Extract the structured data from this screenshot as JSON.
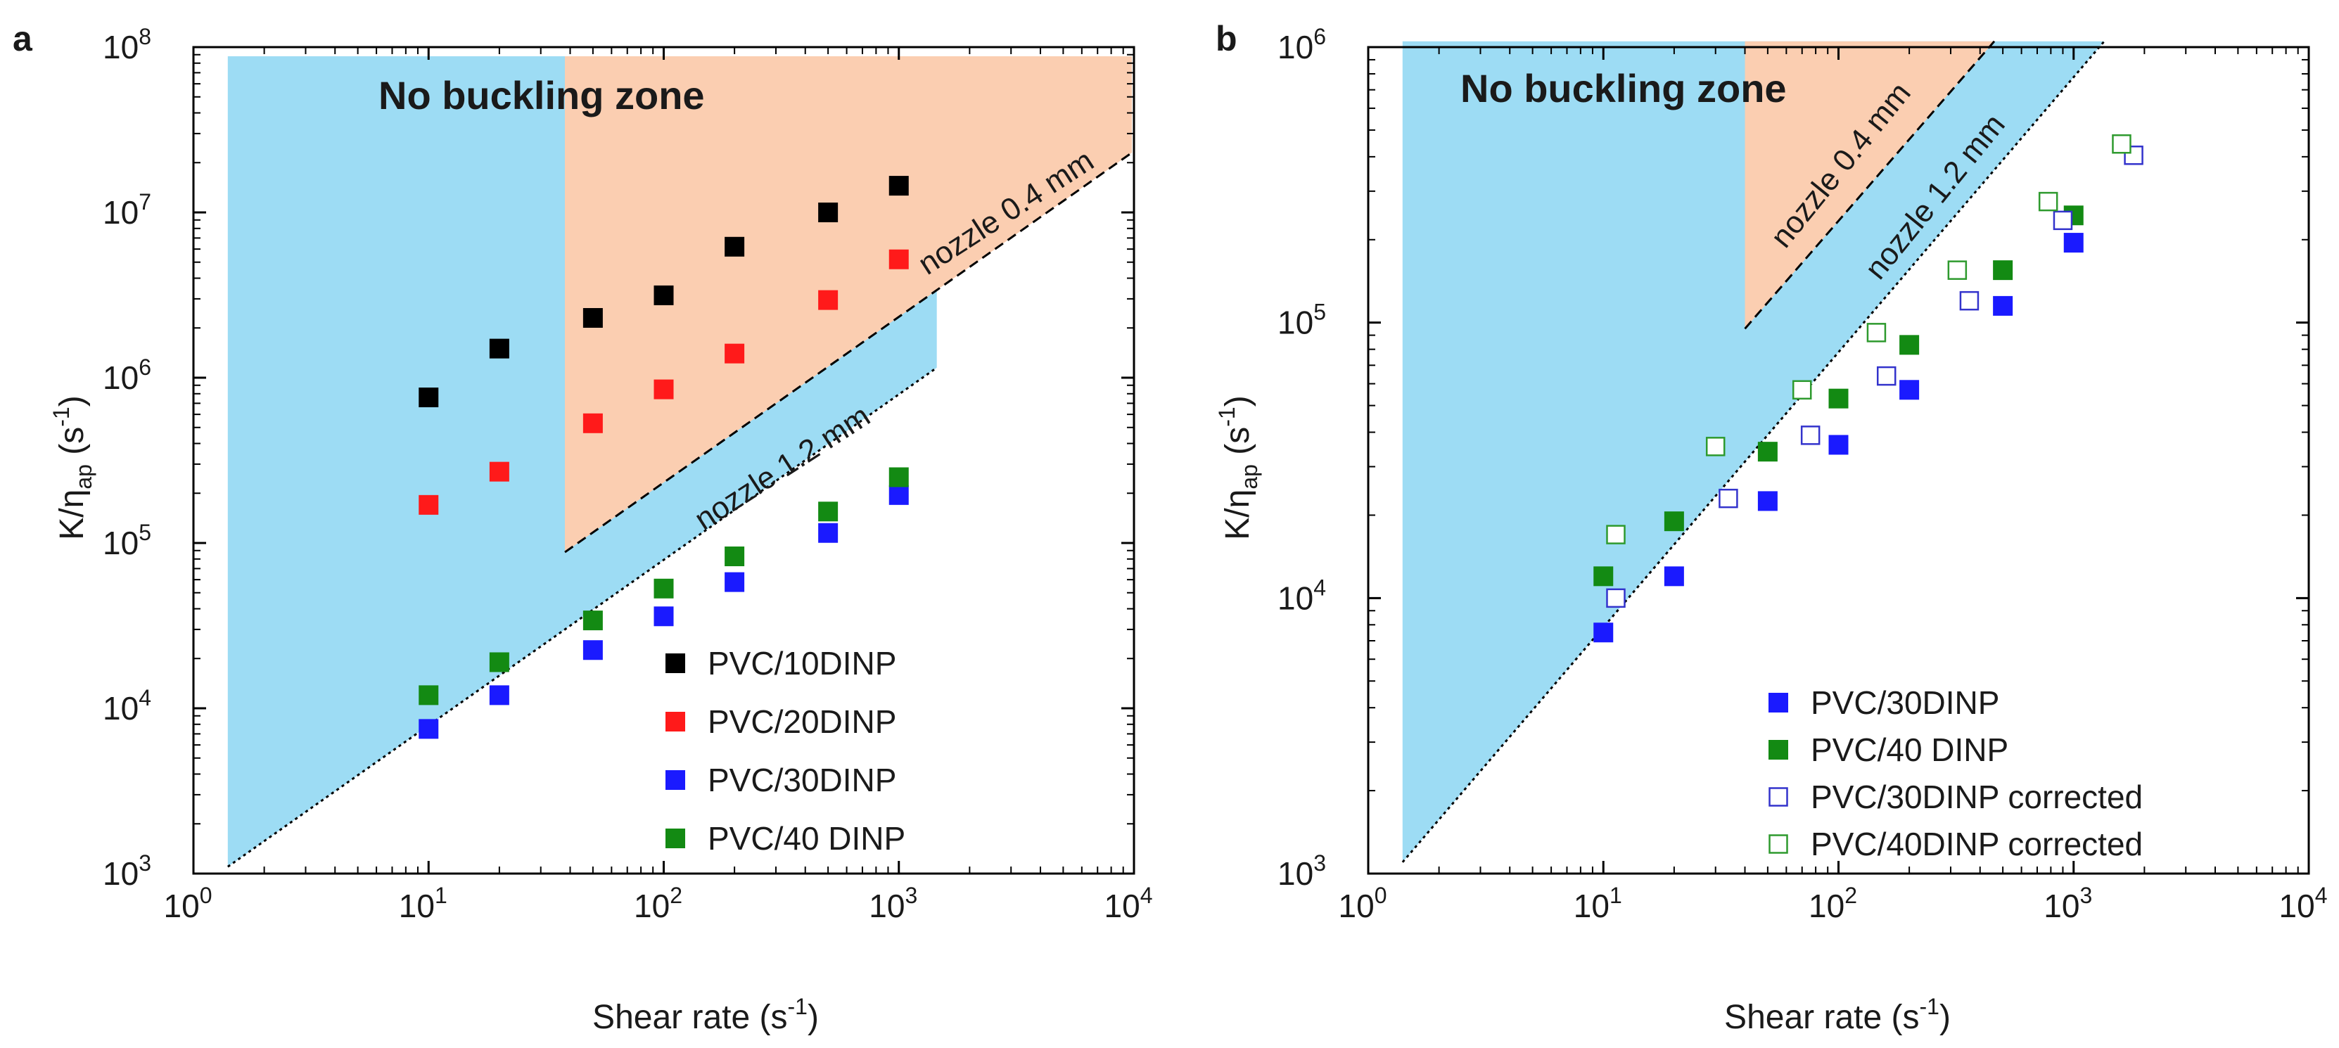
{
  "chart_data": [
    {
      "panel_label": "a",
      "type": "scatter",
      "xscale": "log",
      "yscale": "log",
      "xlim": [
        1,
        10000
      ],
      "ylim": [
        1000,
        100000000
      ],
      "xlabel": {
        "main": "Shear rate (s",
        "sup": "-1",
        "end": ")"
      },
      "ylabel": {
        "main": "K/η",
        "sub": "ap",
        "mid": " (s",
        "sup": "-1",
        "end": ")"
      },
      "x_ticks": [
        {
          "base": "10",
          "exp": "0",
          "value": 1
        },
        {
          "base": "10",
          "exp": "1",
          "value": 10
        },
        {
          "base": "10",
          "exp": "2",
          "value": 100
        },
        {
          "base": "10",
          "exp": "3",
          "value": 1000
        },
        {
          "base": "10",
          "exp": "4",
          "value": 10000
        }
      ],
      "y_ticks": [
        {
          "base": "10",
          "exp": "3",
          "value": 1000
        },
        {
          "base": "10",
          "exp": "4",
          "value": 10000
        },
        {
          "base": "10",
          "exp": "5",
          "value": 100000
        },
        {
          "base": "10",
          "exp": "6",
          "value": 1000000
        },
        {
          "base": "10",
          "exp": "7",
          "value": 10000000
        },
        {
          "base": "10",
          "exp": "8",
          "value": 100000000
        }
      ],
      "zone_title": "No buckling zone",
      "regions": [
        {
          "name": "blue",
          "color": "#9ddcf4",
          "points": [
            [
              1.4,
              1100
            ],
            [
              1.4,
              88000000
            ],
            [
              1450,
              88000000
            ],
            [
              1450,
              1150000
            ]
          ]
        },
        {
          "name": "orange",
          "color": "#fbceb1",
          "points": [
            [
              38,
              88000
            ],
            [
              38,
              88000000
            ],
            [
              9800,
              88000000
            ],
            [
              9800,
              23000000
            ]
          ]
        }
      ],
      "boundaries": [
        {
          "label": "nozzle 1.2 mm",
          "style": "dotted",
          "from": [
            1.4,
            1100
          ],
          "to": [
            1450,
            1150000
          ]
        },
        {
          "label": "nozzle 0.4 mm",
          "style": "dashed",
          "from": [
            38,
            88000
          ],
          "to": [
            9800,
            23000000
          ]
        }
      ],
      "series": [
        {
          "name": "PVC/10DINP",
          "color": "#000000",
          "filled": true,
          "x": [
            10,
            20,
            50,
            100,
            200,
            500,
            1000
          ],
          "y": [
            760000,
            1500000,
            2300000,
            3150000,
            6200000,
            10000000,
            14500000
          ]
        },
        {
          "name": "PVC/20DINP",
          "color": "#ff1a1a",
          "filled": true,
          "x": [
            10,
            20,
            50,
            100,
            200,
            500,
            1000
          ],
          "y": [
            170000,
            270000,
            530000,
            850000,
            1400000,
            2950000,
            5200000
          ]
        },
        {
          "name": "PVC/30DINP",
          "color": "#1a1aff",
          "filled": true,
          "x": [
            10,
            20,
            50,
            100,
            200,
            500,
            1000
          ],
          "y": [
            7500,
            12000,
            22500,
            36000,
            58000,
            115000,
            195000
          ]
        },
        {
          "name": "PVC/40 DINP",
          "color": "#138a13",
          "filled": true,
          "x": [
            10,
            20,
            50,
            100,
            200,
            500,
            1000
          ],
          "y": [
            12000,
            19000,
            34000,
            53000,
            83000,
            155000,
            250000
          ]
        }
      ],
      "legend_position": "bottom-right"
    },
    {
      "panel_label": "b",
      "type": "scatter",
      "xscale": "log",
      "yscale": "log",
      "xlim": [
        1,
        10000
      ],
      "ylim": [
        1000,
        1000000
      ],
      "xlabel": {
        "main": "Shear rate (s",
        "sup": "-1",
        "end": ")"
      },
      "ylabel": {
        "main": "K/η",
        "sub": "ap",
        "mid": " (s",
        "sup": "-1",
        "end": ")"
      },
      "x_ticks": [
        {
          "base": "10",
          "exp": "0",
          "value": 1
        },
        {
          "base": "10",
          "exp": "1",
          "value": 10
        },
        {
          "base": "10",
          "exp": "2",
          "value": 100
        },
        {
          "base": "10",
          "exp": "3",
          "value": 1000
        },
        {
          "base": "10",
          "exp": "4",
          "value": 10000
        }
      ],
      "y_ticks": [
        {
          "base": "10",
          "exp": "3",
          "value": 1000
        },
        {
          "base": "10",
          "exp": "4",
          "value": 10000
        },
        {
          "base": "10",
          "exp": "5",
          "value": 100000
        },
        {
          "base": "10",
          "exp": "6",
          "value": 1000000
        }
      ],
      "zone_title": "No buckling zone",
      "regions": [
        {
          "name": "blue",
          "color": "#9ddcf4",
          "points": [
            [
              1.4,
              1100
            ],
            [
              1.4,
              1050000
            ],
            [
              1350,
              1050000
            ]
          ]
        },
        {
          "name": "orange",
          "color": "#fbceb1",
          "points": [
            [
              40,
              95000
            ],
            [
              40,
              1050000
            ],
            [
              460,
              1050000
            ]
          ]
        }
      ],
      "boundaries": [
        {
          "label": "nozzle 1.2 mm",
          "style": "dotted",
          "from": [
            1.4,
            1100
          ],
          "to": [
            1350,
            1050000
          ]
        },
        {
          "label": "nozzle 0.4 mm",
          "style": "dashed",
          "from": [
            40,
            95000
          ],
          "to": [
            460,
            1050000
          ]
        }
      ],
      "series": [
        {
          "name": "PVC/30DINP",
          "color": "#1a1aff",
          "filled": true,
          "x": [
            10,
            20,
            50,
            100,
            200,
            500,
            1000
          ],
          "y": [
            7500,
            12000,
            22500,
            36000,
            57000,
            115000,
            195000
          ]
        },
        {
          "name": "PVC/40 DINP",
          "color": "#138a13",
          "filled": true,
          "x": [
            10,
            20,
            50,
            100,
            200,
            500,
            1000
          ],
          "y": [
            12000,
            19000,
            34000,
            53000,
            83000,
            155000,
            245000
          ]
        },
        {
          "name": "PVC/30DINP corrected",
          "color": "#3333cc",
          "filled": false,
          "x": [
            11.3,
            34,
            76,
            160,
            360,
            900,
            1800
          ],
          "y": [
            10000,
            23000,
            39000,
            64000,
            120000,
            235000,
            405000
          ]
        },
        {
          "name": "PVC/40DINP corrected",
          "color": "#2e9a2e",
          "filled": false,
          "x": [
            11.3,
            30,
            70,
            145,
            320,
            780,
            1600
          ],
          "y": [
            17000,
            35500,
            57000,
            92000,
            155000,
            275000,
            445000
          ]
        }
      ],
      "legend_position": "bottom-right"
    }
  ]
}
